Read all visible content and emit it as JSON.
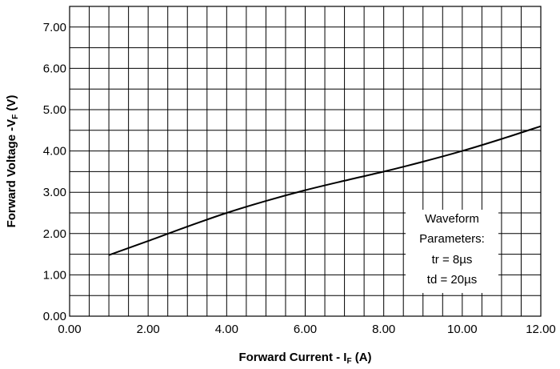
{
  "chart_data": {
    "type": "line",
    "xlabel": {
      "main": "Forward Current - I",
      "sub": "F",
      "suffix": " (A)"
    },
    "ylabel": {
      "main": "Forward Voltage -V",
      "sub": "F",
      "suffix": " (V)"
    },
    "xlim": [
      0,
      12
    ],
    "ylim": [
      0,
      7.5
    ],
    "x_ticks": [
      "0.00",
      "2.00",
      "4.00",
      "6.00",
      "8.00",
      "10.00",
      "12.00"
    ],
    "y_ticks": [
      "0.00",
      "1.00",
      "2.00",
      "3.00",
      "4.00",
      "5.00",
      "6.00",
      "7.00"
    ],
    "grid": true,
    "series": [
      {
        "x": [
          1,
          2,
          3,
          4,
          5,
          6,
          7,
          8,
          9,
          10,
          11,
          12
        ],
        "y": [
          1.48,
          1.82,
          2.17,
          2.5,
          2.79,
          3.05,
          3.28,
          3.5,
          3.74,
          4.0,
          4.29,
          4.6
        ]
      }
    ],
    "annotation": {
      "lines": [
        "Waveform",
        "Parameters:",
        "tr = 8µs",
        "td = 20µs"
      ]
    }
  }
}
